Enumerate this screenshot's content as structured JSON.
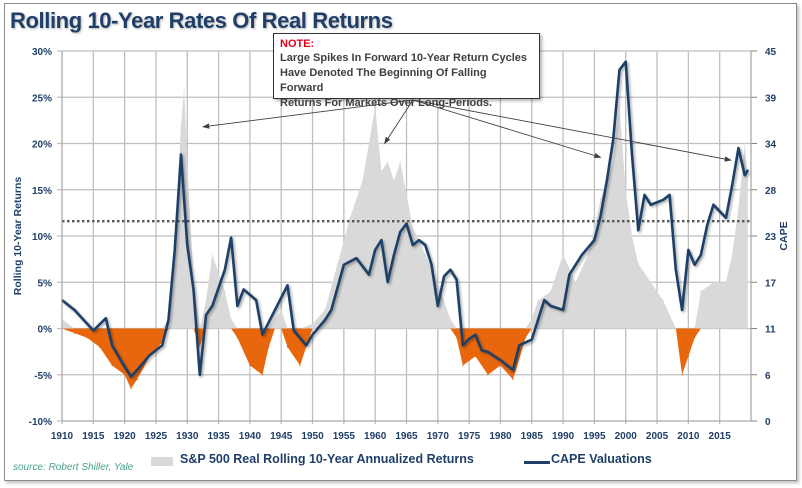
{
  "chart_data": {
    "type": "area+line",
    "title": "Rolling 10-Year Rates Of Real Returns",
    "xlabel": "",
    "ylabel": "Rolling 10-Year Returns",
    "y2label": "CAPE",
    "xlim": [
      1910,
      2020
    ],
    "ylim": [
      -10,
      30
    ],
    "y2lim": [
      0,
      45
    ],
    "x_ticks": [
      "1910",
      "1915",
      "1920",
      "1925",
      "1930",
      "1935",
      "1940",
      "1945",
      "1950",
      "1955",
      "1960",
      "1965",
      "1970",
      "1975",
      "1980",
      "1985",
      "1990",
      "1995",
      "2000",
      "2005",
      "2010",
      "2015"
    ],
    "y_ticks": [
      "-10%",
      "-5%",
      "0%",
      "5%",
      "10%",
      "15%",
      "20%",
      "25%",
      "30%"
    ],
    "y_tick_values": [
      -10,
      -5,
      0,
      5,
      10,
      15,
      20,
      25,
      30
    ],
    "y2_ticks": [
      "0",
      "6",
      "11",
      "17",
      "23",
      "28",
      "34",
      "39",
      "45"
    ],
    "y2_tick_values": [
      0,
      5.625,
      11.25,
      16.875,
      22.5,
      28.125,
      33.75,
      39.375,
      45
    ],
    "grid": true,
    "reference_line": {
      "value": 11.6,
      "axis": "left",
      "style": "dotted"
    },
    "legend_placement": "bottom",
    "colors": {
      "returns_positive": "#d9d9d9",
      "returns_negative": "#e8670c",
      "cape": "#1f3f68",
      "axis_text": "#1f3f68"
    },
    "series": [
      {
        "name": "S&P 500 Real Rolling 10-Year Annualized Returns",
        "axis": "left",
        "kind": "area",
        "x": [
          1910,
          1912,
          1914,
          1916,
          1918,
          1920,
          1921,
          1922,
          1924,
          1926,
          1927,
          1928,
          1929,
          1929.5,
          1930,
          1931,
          1932,
          1933,
          1934,
          1935,
          1936,
          1937,
          1938,
          1940,
          1942,
          1943,
          1944,
          1945,
          1946,
          1948,
          1950,
          1952,
          1954,
          1956,
          1958,
          1960,
          1961,
          1962,
          1963,
          1964,
          1966,
          1968,
          1970,
          1972,
          1973,
          1974,
          1976,
          1978,
          1980,
          1982,
          1984,
          1985,
          1986,
          1988,
          1990,
          1992,
          1994,
          1996,
          1998,
          1999,
          2000,
          2001,
          2002,
          2004,
          2006,
          2008,
          2009,
          2010,
          2011,
          2012,
          2014,
          2016,
          2017,
          2018,
          2019,
          2019.5
        ],
        "values": [
          1,
          -0.5,
          -1,
          -2,
          -4,
          -5,
          -6.5,
          -5.5,
          -3,
          -1.5,
          1,
          8,
          22,
          26,
          18,
          5,
          -2,
          3,
          8,
          6,
          4,
          1,
          -1,
          -4,
          -5,
          -2,
          1,
          2,
          -2,
          -4,
          0.5,
          2,
          7,
          12,
          16,
          24,
          17,
          18,
          16,
          18,
          11,
          8,
          5,
          1,
          -1,
          -4,
          -3,
          -5,
          -4,
          -5.5,
          -1,
          1,
          3,
          4,
          8,
          5,
          8,
          14,
          18,
          24,
          15,
          10,
          7,
          5,
          3,
          0,
          -5,
          -3,
          -1,
          4,
          5,
          5,
          8,
          13,
          20,
          16
        ]
      },
      {
        "name": "CAPE Valuations",
        "axis": "right",
        "kind": "line",
        "x": [
          1910,
          1912,
          1915,
          1917,
          1918,
          1920,
          1921,
          1922,
          1924,
          1926,
          1927,
          1928,
          1929,
          1930,
          1931,
          1932,
          1933,
          1934,
          1936,
          1937,
          1938,
          1939,
          1941,
          1942,
          1944,
          1946,
          1947,
          1949,
          1950,
          1952,
          1953,
          1955,
          1957,
          1959,
          1960,
          1961,
          1962,
          1963,
          1964,
          1965,
          1966,
          1967,
          1968,
          1969,
          1970,
          1971,
          1972,
          1973,
          1974,
          1975,
          1976,
          1977,
          1978,
          1980,
          1982,
          1983,
          1985,
          1987,
          1988,
          1990,
          1991,
          1993,
          1995,
          1996,
          1997,
          1998,
          1999,
          2000,
          2001,
          2002,
          2003,
          2004,
          2006,
          2007,
          2008,
          2009,
          2010,
          2011,
          2012,
          2013,
          2014,
          2015,
          2016,
          2017,
          2018,
          2019,
          2019.5
        ],
        "values": [
          14.7,
          13.5,
          11,
          12.5,
          9.2,
          6.6,
          5.4,
          6.2,
          8,
          9.2,
          12.3,
          20.8,
          32.4,
          21.4,
          16,
          5.6,
          12.9,
          14,
          18.4,
          22.3,
          14,
          16,
          14.7,
          10.5,
          13.5,
          16.5,
          11,
          9.2,
          10.5,
          12.3,
          13.5,
          19,
          19.8,
          17.8,
          20.8,
          22,
          16.9,
          20.2,
          23,
          24,
          21.4,
          22,
          21.4,
          19,
          14,
          17.6,
          18.4,
          17.2,
          9.2,
          10,
          10.5,
          8.6,
          8.4,
          7.4,
          6.2,
          9.2,
          9.9,
          14.7,
          14,
          13.5,
          17.8,
          20.2,
          22,
          25,
          29.3,
          34.2,
          42.7,
          43.7,
          32.4,
          23.2,
          27.5,
          26.3,
          26.9,
          27.5,
          18.4,
          13.5,
          20.8,
          19,
          20.2,
          23.8,
          26.3,
          25.5,
          24.7,
          28.7,
          33.2,
          29.9,
          30.5
        ]
      }
    ],
    "annotation": {
      "heading": "NOTE:",
      "lines": [
        "Large Spikes In Forward 10-Year Return Cycles",
        "Have Denoted The Beginning Of Falling Forward",
        "Returns For Markets Over Long-Periods."
      ],
      "arrow_targets": [
        {
          "year": 1932.5,
          "value": 21.8
        },
        {
          "year": 1961.5,
          "value": 20
        },
        {
          "year": 1996,
          "value": 18.5
        },
        {
          "year": 2016.8,
          "value": 18.2
        }
      ]
    },
    "legend": [
      {
        "label": "S&P 500 Real Rolling 10-Year Annualized Returns",
        "kind": "area"
      },
      {
        "label": "CAPE Valuations",
        "kind": "line"
      }
    ],
    "source": "source: Robert Shiller, Yale"
  }
}
